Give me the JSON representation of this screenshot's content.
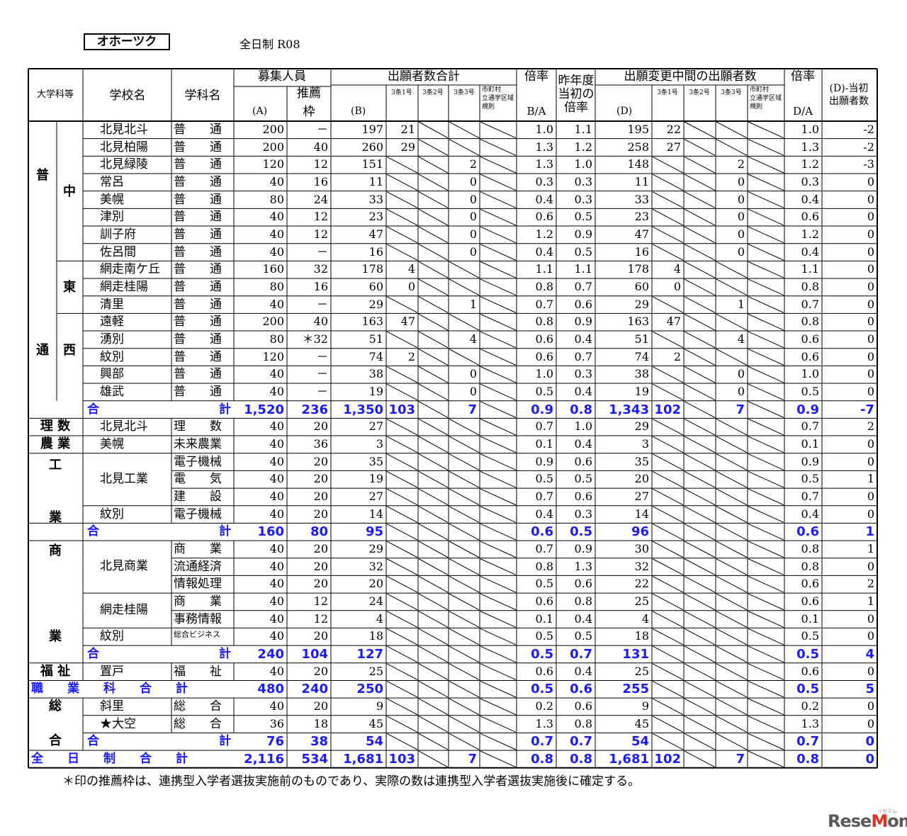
{
  "region": "オホーツク",
  "subtitle": "全日制  R08",
  "headers": {
    "category": "大学科等",
    "school": "学校名",
    "dept": "学科名",
    "recruit": "募集人員",
    "recruit_a": "(A)",
    "suisen": "推薦枠",
    "applicants_total": "出願者数合計",
    "b": "(B)",
    "jo1": "3条1号",
    "jo2": "3条2号",
    "jo3": "3条3号",
    "kisoku": "市町村立通学区域規則",
    "ratio": "倍率",
    "ba": "B/A",
    "prev_ratio": "昨年度当初の倍率",
    "mid_applicants": "出願変更中間の出願者数",
    "d": "(D)",
    "ratio2": "倍率",
    "da": "D/A",
    "diff": "(D)-当初出願者数"
  },
  "category_labels": {
    "futsu_1": "普",
    "futsu_2": "通",
    "naka": "中",
    "higashi": "東",
    "nishi": "西",
    "risu": "理  数",
    "nogyo": "農  業",
    "kogyo_1": "工",
    "kogyo_2": "業",
    "shogyo_1": "商",
    "shogyo_2": "業",
    "fukushi": "福  祉",
    "sogo_1": "総",
    "sogo_2": "合"
  },
  "rows": [
    {
      "school": "北見北斗",
      "dept": "普　　通",
      "a": "200",
      "s": "－",
      "b": "197",
      "j1": "21",
      "j2": "/",
      "j3": "/",
      "k": "/",
      "ba": "1.0",
      "prev": "1.1",
      "d": "195",
      "dj1": "22",
      "dj2": "/",
      "dj3": "/",
      "dk": "/",
      "da": "1.0",
      "diff": "-2"
    },
    {
      "school": "北見柏陽",
      "dept": "普　　通",
      "a": "200",
      "s": "40",
      "b": "260",
      "j1": "29",
      "j2": "/",
      "j3": "/",
      "k": "/",
      "ba": "1.3",
      "prev": "1.2",
      "d": "258",
      "dj1": "27",
      "dj2": "/",
      "dj3": "/",
      "dk": "/",
      "da": "1.3",
      "diff": "-2"
    },
    {
      "school": "北見緑陵",
      "dept": "普　　通",
      "a": "120",
      "s": "12",
      "b": "151",
      "j1": "/",
      "j2": "/",
      "j3": "2",
      "k": "/",
      "ba": "1.3",
      "prev": "1.0",
      "d": "148",
      "dj1": "/",
      "dj2": "/",
      "dj3": "2",
      "dk": "/",
      "da": "1.2",
      "diff": "-3"
    },
    {
      "school": "常呂",
      "dept": "普　　通",
      "a": "40",
      "s": "16",
      "b": "11",
      "j1": "/",
      "j2": "/",
      "j3": "0",
      "k": "/",
      "ba": "0.3",
      "prev": "0.3",
      "d": "11",
      "dj1": "/",
      "dj2": "/",
      "dj3": "0",
      "dk": "/",
      "da": "0.3",
      "diff": "0"
    },
    {
      "school": "美幌",
      "dept": "普　　通",
      "a": "80",
      "s": "24",
      "b": "33",
      "j1": "/",
      "j2": "/",
      "j3": "0",
      "k": "/",
      "ba": "0.4",
      "prev": "0.3",
      "d": "33",
      "dj1": "/",
      "dj2": "/",
      "dj3": "0",
      "dk": "/",
      "da": "0.4",
      "diff": "0"
    },
    {
      "school": "津別",
      "dept": "普　　通",
      "a": "40",
      "s": "12",
      "b": "23",
      "j1": "/",
      "j2": "/",
      "j3": "0",
      "k": "/",
      "ba": "0.6",
      "prev": "0.5",
      "d": "23",
      "dj1": "/",
      "dj2": "/",
      "dj3": "0",
      "dk": "/",
      "da": "0.6",
      "diff": "0"
    },
    {
      "school": "訓子府",
      "dept": "普　　通",
      "a": "40",
      "s": "12",
      "b": "47",
      "j1": "/",
      "j2": "/",
      "j3": "0",
      "k": "/",
      "ba": "1.2",
      "prev": "0.9",
      "d": "47",
      "dj1": "/",
      "dj2": "/",
      "dj3": "0",
      "dk": "/",
      "da": "1.2",
      "diff": "0"
    },
    {
      "school": "佐呂間",
      "dept": "普　　通",
      "a": "40",
      "s": "－",
      "b": "16",
      "j1": "/",
      "j2": "/",
      "j3": "0",
      "k": "/",
      "ba": "0.4",
      "prev": "0.5",
      "d": "16",
      "dj1": "/",
      "dj2": "/",
      "dj3": "0",
      "dk": "/",
      "da": "0.4",
      "diff": "0"
    },
    {
      "school": "網走南ケ丘",
      "dept": "普　　通",
      "a": "160",
      "s": "32",
      "b": "178",
      "j1": "4",
      "j2": "/",
      "j3": "/",
      "k": "/",
      "ba": "1.1",
      "prev": "1.1",
      "d": "178",
      "dj1": "4",
      "dj2": "/",
      "dj3": "/",
      "dk": "/",
      "da": "1.1",
      "diff": "0"
    },
    {
      "school": "網走桂陽",
      "dept": "普　　通",
      "a": "80",
      "s": "16",
      "b": "60",
      "j1": "0",
      "j2": "/",
      "j3": "/",
      "k": "/",
      "ba": "0.8",
      "prev": "0.7",
      "d": "60",
      "dj1": "0",
      "dj2": "/",
      "dj3": "/",
      "dk": "/",
      "da": "0.8",
      "diff": "0"
    },
    {
      "school": "清里",
      "dept": "普　　通",
      "a": "40",
      "s": "－",
      "b": "29",
      "j1": "/",
      "j2": "/",
      "j3": "1",
      "k": "/",
      "ba": "0.7",
      "prev": "0.6",
      "d": "29",
      "dj1": "/",
      "dj2": "/",
      "dj3": "1",
      "dk": "/",
      "da": "0.7",
      "diff": "0"
    },
    {
      "school": "遠軽",
      "dept": "普　　通",
      "a": "200",
      "s": "40",
      "b": "163",
      "j1": "47",
      "j2": "/",
      "j3": "/",
      "k": "/",
      "ba": "0.8",
      "prev": "0.9",
      "d": "163",
      "dj1": "47",
      "dj2": "/",
      "dj3": "/",
      "dk": "/",
      "da": "0.8",
      "diff": "0"
    },
    {
      "school": "湧別",
      "dept": "普　　通",
      "a": "80",
      "s": "＊32",
      "b": "51",
      "j1": "/",
      "j2": "/",
      "j3": "4",
      "k": "/",
      "ba": "0.6",
      "prev": "0.4",
      "d": "51",
      "dj1": "/",
      "dj2": "/",
      "dj3": "4",
      "dk": "/",
      "da": "0.6",
      "diff": "0"
    },
    {
      "school": "紋別",
      "dept": "普　　通",
      "a": "120",
      "s": "－",
      "b": "74",
      "j1": "2",
      "j2": "/",
      "j3": "/",
      "k": "/",
      "ba": "0.6",
      "prev": "0.7",
      "d": "74",
      "dj1": "2",
      "dj2": "/",
      "dj3": "/",
      "dk": "/",
      "da": "0.6",
      "diff": "0"
    },
    {
      "school": "興部",
      "dept": "普　　通",
      "a": "40",
      "s": "－",
      "b": "38",
      "j1": "/",
      "j2": "/",
      "j3": "0",
      "k": "/",
      "ba": "1.0",
      "prev": "0.3",
      "d": "38",
      "dj1": "/",
      "dj2": "/",
      "dj3": "0",
      "dk": "/",
      "da": "1.0",
      "diff": "0"
    },
    {
      "school": "雄武",
      "dept": "普　　通",
      "a": "40",
      "s": "－",
      "b": "19",
      "j1": "/",
      "j2": "/",
      "j3": "0",
      "k": "/",
      "ba": "0.5",
      "prev": "0.4",
      "d": "19",
      "dj1": "/",
      "dj2": "/",
      "dj3": "0",
      "dk": "/",
      "da": "0.5",
      "diff": "0"
    },
    {
      "total": true,
      "l1": "合",
      "l2": "計",
      "a": "1,520",
      "s": "236",
      "b": "1,350",
      "j1": "103",
      "j2": "/",
      "j3": "7",
      "k": "/",
      "ba": "0.9",
      "prev": "0.8",
      "d": "1,343",
      "dj1": "102",
      "dj2": "/",
      "dj3": "7",
      "dk": "/",
      "da": "0.9",
      "diff": "-7"
    },
    {
      "school": "北見北斗",
      "dept": "理　　数",
      "a": "40",
      "s": "20",
      "b": "27",
      "j1": "/",
      "j2": "/",
      "j3": "/",
      "k": "/",
      "ba": "0.7",
      "prev": "1.0",
      "d": "29",
      "dj1": "/",
      "dj2": "/",
      "dj3": "/",
      "dk": "/",
      "da": "0.7",
      "diff": "2"
    },
    {
      "school": "美幌",
      "dept": "未来農業",
      "a": "40",
      "s": "36",
      "b": "3",
      "j1": "/",
      "j2": "/",
      "j3": "/",
      "k": "/",
      "ba": "0.1",
      "prev": "0.4",
      "d": "3",
      "dj1": "/",
      "dj2": "/",
      "dj3": "/",
      "dk": "/",
      "da": "0.1",
      "diff": "0"
    },
    {
      "school": "",
      "dept": "電子機械",
      "a": "40",
      "s": "20",
      "b": "35",
      "j1": "/",
      "j2": "/",
      "j3": "/",
      "k": "/",
      "ba": "0.9",
      "prev": "0.6",
      "d": "35",
      "dj1": "/",
      "dj2": "/",
      "dj3": "/",
      "dk": "/",
      "da": "0.9",
      "diff": "0"
    },
    {
      "school": "",
      "dept": "電　　気",
      "a": "40",
      "s": "20",
      "b": "19",
      "j1": "/",
      "j2": "/",
      "j3": "/",
      "k": "/",
      "ba": "0.5",
      "prev": "0.5",
      "d": "20",
      "dj1": "/",
      "dj2": "/",
      "dj3": "/",
      "dk": "/",
      "da": "0.5",
      "diff": "1"
    },
    {
      "school": "",
      "dept": "建　　設",
      "a": "40",
      "s": "20",
      "b": "27",
      "j1": "/",
      "j2": "/",
      "j3": "/",
      "k": "/",
      "ba": "0.7",
      "prev": "0.6",
      "d": "27",
      "dj1": "/",
      "dj2": "/",
      "dj3": "/",
      "dk": "/",
      "da": "0.7",
      "diff": "0"
    },
    {
      "school": "紋別",
      "dept": "電子機械",
      "a": "40",
      "s": "20",
      "b": "14",
      "j1": "/",
      "j2": "/",
      "j3": "/",
      "k": "/",
      "ba": "0.4",
      "prev": "0.3",
      "d": "14",
      "dj1": "/",
      "dj2": "/",
      "dj3": "/",
      "dk": "/",
      "da": "0.4",
      "diff": "0"
    },
    {
      "total": true,
      "l1": "合",
      "l2": "計",
      "a": "160",
      "s": "80",
      "b": "95",
      "j1": "/",
      "j2": "/",
      "j3": "/",
      "k": "/",
      "ba": "0.6",
      "prev": "0.5",
      "d": "96",
      "dj1": "/",
      "dj2": "/",
      "dj3": "/",
      "dk": "/",
      "da": "0.6",
      "diff": "1"
    },
    {
      "school": "",
      "dept": "商　　業",
      "a": "40",
      "s": "20",
      "b": "29",
      "j1": "/",
      "j2": "/",
      "j3": "/",
      "k": "/",
      "ba": "0.7",
      "prev": "0.9",
      "d": "30",
      "dj1": "/",
      "dj2": "/",
      "dj3": "/",
      "dk": "/",
      "da": "0.8",
      "diff": "1"
    },
    {
      "school": "",
      "dept": "流通経済",
      "a": "40",
      "s": "20",
      "b": "32",
      "j1": "/",
      "j2": "/",
      "j3": "/",
      "k": "/",
      "ba": "0.8",
      "prev": "1.3",
      "d": "32",
      "dj1": "/",
      "dj2": "/",
      "dj3": "/",
      "dk": "/",
      "da": "0.8",
      "diff": "0"
    },
    {
      "school": "",
      "dept": "情報処理",
      "a": "40",
      "s": "20",
      "b": "20",
      "j1": "/",
      "j2": "/",
      "j3": "/",
      "k": "/",
      "ba": "0.5",
      "prev": "0.6",
      "d": "22",
      "dj1": "/",
      "dj2": "/",
      "dj3": "/",
      "dk": "/",
      "da": "0.6",
      "diff": "2"
    },
    {
      "school": "",
      "dept": "商　　業",
      "a": "40",
      "s": "12",
      "b": "24",
      "j1": "/",
      "j2": "/",
      "j3": "/",
      "k": "/",
      "ba": "0.6",
      "prev": "0.8",
      "d": "25",
      "dj1": "/",
      "dj2": "/",
      "dj3": "/",
      "dk": "/",
      "da": "0.6",
      "diff": "1"
    },
    {
      "school": "",
      "dept": "事務情報",
      "a": "40",
      "s": "12",
      "b": "4",
      "j1": "/",
      "j2": "/",
      "j3": "/",
      "k": "/",
      "ba": "0.1",
      "prev": "0.4",
      "d": "4",
      "dj1": "/",
      "dj2": "/",
      "dj3": "/",
      "dk": "/",
      "da": "0.1",
      "diff": "0"
    },
    {
      "school": "紋別",
      "dept": "総合ビジネス",
      "a": "40",
      "s": "20",
      "b": "18",
      "j1": "/",
      "j2": "/",
      "j3": "/",
      "k": "/",
      "ba": "0.5",
      "prev": "0.5",
      "d": "18",
      "dj1": "/",
      "dj2": "/",
      "dj3": "/",
      "dk": "/",
      "da": "0.5",
      "diff": "0"
    },
    {
      "total": true,
      "l1": "合",
      "l2": "計",
      "a": "240",
      "s": "104",
      "b": "127",
      "j1": "/",
      "j2": "/",
      "j3": "/",
      "k": "/",
      "ba": "0.5",
      "prev": "0.7",
      "d": "131",
      "dj1": "/",
      "dj2": "/",
      "dj3": "/",
      "dk": "/",
      "da": "0.5",
      "diff": "4"
    },
    {
      "school": "置戸",
      "dept": "福　　祉",
      "a": "40",
      "s": "20",
      "b": "25",
      "j1": "/",
      "j2": "/",
      "j3": "/",
      "k": "/",
      "ba": "0.6",
      "prev": "0.4",
      "d": "25",
      "dj1": "/",
      "dj2": "/",
      "dj3": "/",
      "dk": "/",
      "da": "0.6",
      "diff": "0"
    },
    {
      "total": true,
      "wide": true,
      "l1": "職　　業　　科　　合　　計",
      "a": "480",
      "s": "240",
      "b": "250",
      "j1": "/",
      "j2": "/",
      "j3": "/",
      "k": "/",
      "ba": "0.5",
      "prev": "0.6",
      "d": "255",
      "dj1": "/",
      "dj2": "/",
      "dj3": "/",
      "dk": "/",
      "da": "0.5",
      "diff": "5"
    },
    {
      "school": "斜里",
      "dept": "総　　合",
      "a": "40",
      "s": "20",
      "b": "9",
      "j1": "/",
      "j2": "/",
      "j3": "/",
      "k": "/",
      "ba": "0.2",
      "prev": "0.6",
      "d": "9",
      "dj1": "/",
      "dj2": "/",
      "dj3": "/",
      "dk": "/",
      "da": "0.2",
      "diff": "0"
    },
    {
      "school": "★大空",
      "dept": "総　　合",
      "a": "36",
      "s": "18",
      "b": "45",
      "j1": "/",
      "j2": "/",
      "j3": "/",
      "k": "/",
      "ba": "1.3",
      "prev": "0.8",
      "d": "45",
      "dj1": "/",
      "dj2": "/",
      "dj3": "/",
      "dk": "/",
      "da": "1.3",
      "diff": "0"
    },
    {
      "total": true,
      "l1": "合",
      "l2": "計",
      "a": "76",
      "s": "38",
      "b": "54",
      "j1": "/",
      "j2": "/",
      "j3": "/",
      "k": "/",
      "ba": "0.7",
      "prev": "0.7",
      "d": "54",
      "dj1": "/",
      "dj2": "/",
      "dj3": "/",
      "dk": "/",
      "da": "0.7",
      "diff": "0"
    },
    {
      "total": true,
      "wide": true,
      "grand": true,
      "l1": "全　　日　　制　　合　　計",
      "a": "2,116",
      "s": "534",
      "b": "1,681",
      "j1": "103",
      "j2": "/",
      "j3": "7",
      "k": "/",
      "ba": "0.8",
      "prev": "0.8",
      "d": "1,681",
      "dj1": "102",
      "dj2": "/",
      "dj3": "7",
      "dk": "/",
      "da": "0.8",
      "diff": "0"
    }
  ],
  "group_schools": [
    {
      "name": "北見工業",
      "first": 19,
      "last": 21
    },
    {
      "name": "北見商業",
      "first": 24,
      "last": 26
    },
    {
      "name": "網走桂陽",
      "first": 27,
      "last": 28
    }
  ],
  "footnote": "＊印の推薦枠は、連携型入学者選抜実施前のものであり、実際の数は連携型入学者選抜実施後に確定する。",
  "logo": {
    "main_a": "Rese",
    "main_b": "M",
    "main_c": "om",
    "small": "リセマム",
    "accent_color": "#e0301e"
  },
  "total_color": "#1a1aff"
}
